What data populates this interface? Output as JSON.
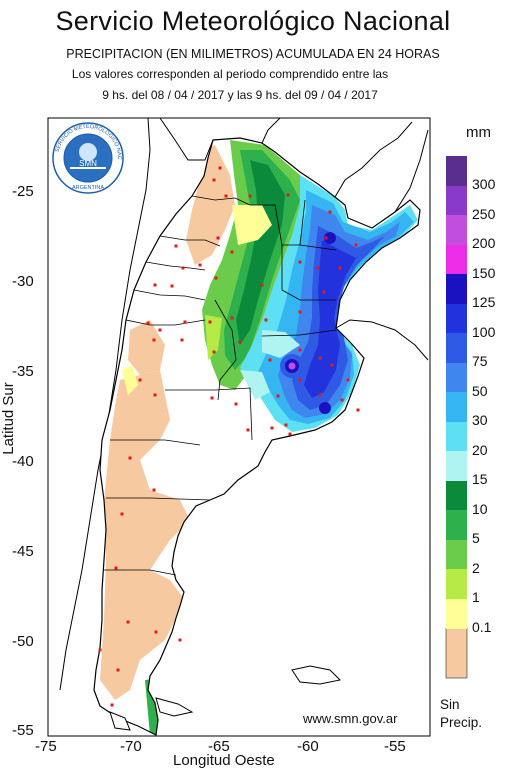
{
  "header": {
    "title": "Servicio Meteorológico Nacional",
    "subtitle": "PRECIPITACION (EN MILIMETROS) ACUMULADA EN 24 HORAS",
    "period_line1": "Los valores corresponden al periodo comprendido entre las",
    "period_line2": "9 hs. del 08 / 04 / 2017  y las 9 hs. del 09 / 04 / 2017"
  },
  "logo": {
    "ring_text": "SERVICIO METEOROLOGICO NACIONAL",
    "bottom_text": "ARGENTINA",
    "center_text": "SMN"
  },
  "axes": {
    "ylabel": "Latitud Sur",
    "xlabel": "Longitud Oeste",
    "lat_ticks": [
      "-25",
      "-30",
      "-35",
      "-40",
      "-45",
      "-50",
      "-55"
    ],
    "lon_ticks": [
      "-75",
      "-70",
      "-65",
      "-60",
      "-55"
    ]
  },
  "legend": {
    "unit": "mm",
    "entries": [
      {
        "label": "300",
        "color": "#5a2e8c"
      },
      {
        "label": "250",
        "color": "#8a3ac8"
      },
      {
        "label": "200",
        "color": "#c24ee0"
      },
      {
        "label": "150",
        "color": "#ec2ce6"
      },
      {
        "label": "125",
        "color": "#1a12c0"
      },
      {
        "label": "100",
        "color": "#2233dd"
      },
      {
        "label": "75",
        "color": "#2f5ae6"
      },
      {
        "label": "50",
        "color": "#3f86ee"
      },
      {
        "label": "30",
        "color": "#35b5f2"
      },
      {
        "label": "20",
        "color": "#5ee0f4"
      },
      {
        "label": "15",
        "color": "#b0f4f2"
      },
      {
        "label": "10",
        "color": "#0a8a3a"
      },
      {
        "label": "5",
        "color": "#2eb04c"
      },
      {
        "label": "2",
        "color": "#6acc4a"
      },
      {
        "label": "1",
        "color": "#b6ea44"
      },
      {
        "label": "0.1",
        "color": "#ffff96"
      },
      {
        "label": "",
        "color": "#f6c9a0"
      }
    ],
    "no_data_line1": "Sin",
    "no_data_line2": "Precip."
  },
  "footer": {
    "url": "www.smn.gov.ar"
  },
  "colors": {
    "ocean": "#ffffff",
    "land": "#ffffff",
    "border": "#000000",
    "station": "#e41a1a",
    "dry_patch": "#f6c9a0"
  }
}
